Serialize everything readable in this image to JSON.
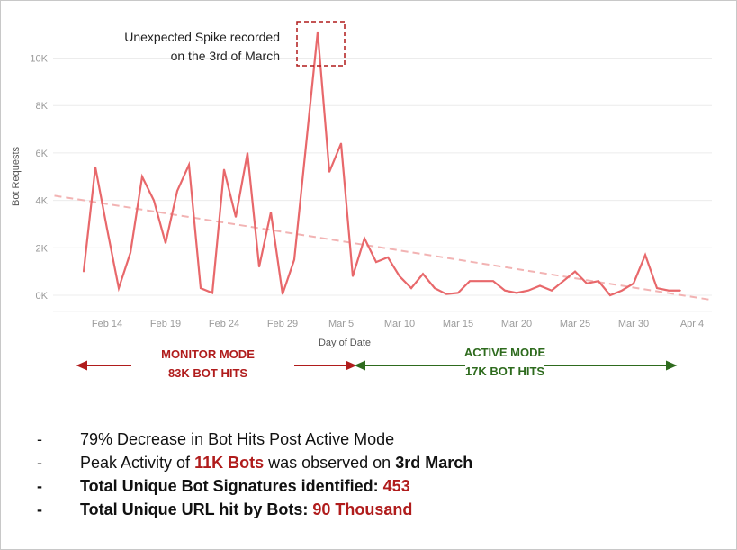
{
  "chart_data": {
    "type": "line",
    "xlabel": "Day of Date",
    "ylabel": "Bot Requests",
    "ylim": [
      0,
      11500
    ],
    "y_ticks": [
      "0K",
      "2K",
      "4K",
      "6K",
      "8K",
      "10K"
    ],
    "y_tick_values": [
      0,
      2000,
      4000,
      6000,
      8000,
      10000
    ],
    "x_ticks": [
      "Feb 14",
      "Feb 19",
      "Feb 24",
      "Feb 29",
      "Mar 5",
      "Mar 10",
      "Mar 15",
      "Mar 20",
      "Mar 25",
      "Mar 30",
      "Apr 4"
    ],
    "x_tick_day_index": [
      2,
      7,
      12,
      17,
      22,
      27,
      32,
      37,
      42,
      47,
      52
    ],
    "x_start": "Feb 12",
    "grid": true,
    "series": [
      {
        "name": "Bot Requests",
        "color": "#e8686b",
        "values": [
          1000,
          5400,
          2800,
          300,
          1800,
          5000,
          4000,
          2200,
          4400,
          5500,
          300,
          100,
          5300,
          3300,
          6000,
          1200,
          3500,
          50,
          1500,
          6300,
          11100,
          5200,
          6400,
          800,
          2400,
          1400,
          1600,
          800,
          300,
          900,
          300,
          50,
          100,
          600,
          600,
          600,
          200,
          100,
          200,
          400,
          200,
          600,
          1000,
          500,
          600,
          0,
          200,
          500,
          1700,
          300,
          200,
          200
        ]
      }
    ],
    "trendline": {
      "color": "#f2b3b3",
      "start_day_index": -2.5,
      "start_value": 4200,
      "end_day_index": 53.7,
      "end_value": -200
    },
    "annotation": {
      "line1": "Unexpected Spike recorded",
      "line2": "on the 3rd of March",
      "day_index": 20
    }
  },
  "modes": {
    "monitor": {
      "title": "MONITOR MODE",
      "hits": "83K  BOT HITS",
      "color": "#b01c1c"
    },
    "active": {
      "title": "ACTIVE MODE",
      "hits": "17K  BOT HITS",
      "color": "#2e6b1e"
    }
  },
  "bullets": [
    {
      "dash": "-",
      "text": "79% Decrease in Bot Hits Post Active Mode"
    },
    {
      "dash": "-",
      "pre": "Peak Activity of ",
      "hl": "11K Bots",
      "mid": " was observed on ",
      "bold": "3rd March"
    },
    {
      "dash": "-",
      "pre": "Total Unique Bot Signatures identified: ",
      "hl": "453"
    },
    {
      "dash": "-",
      "pre": "Total Unique URL hit by Bots: ",
      "hl": "90 Thousand"
    }
  ]
}
